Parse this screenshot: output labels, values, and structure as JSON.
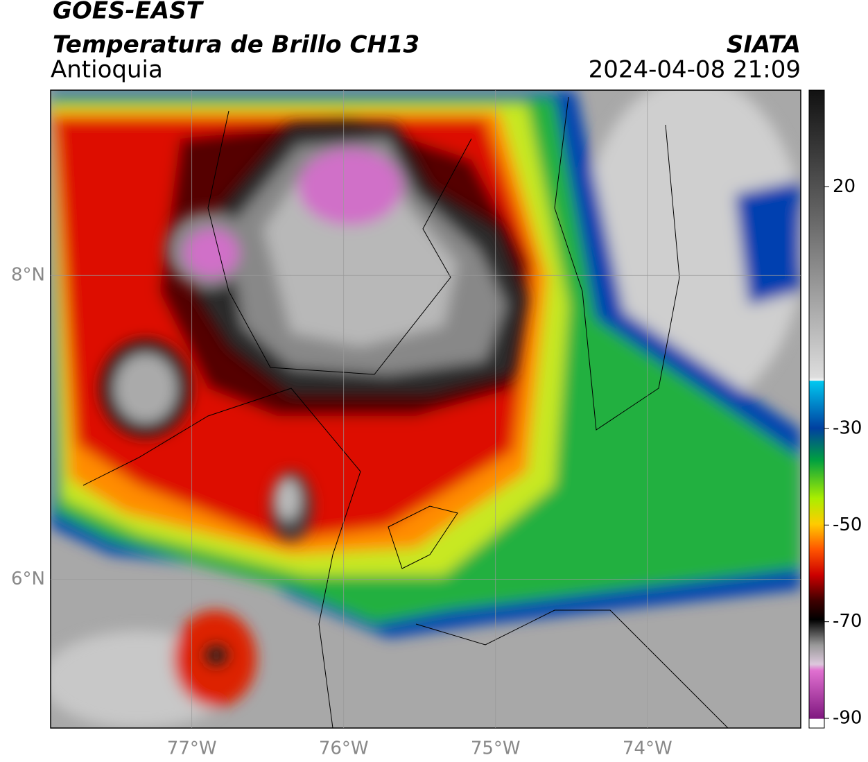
{
  "header": {
    "title": "GOES-EAST",
    "subtitle": "Temperatura de Brillo CH13",
    "region": "Antioquia",
    "agency": "SIATA",
    "datetime": "2024-04-08 21:09"
  },
  "map": {
    "xlim": [
      -77.93,
      -72.99
    ],
    "ylim": [
      5.02,
      9.22
    ],
    "xticks": [
      {
        "value": -77,
        "label": "77°W"
      },
      {
        "value": -76,
        "label": "76°W"
      },
      {
        "value": -75,
        "label": "75°W"
      },
      {
        "value": -74,
        "label": "74°W"
      }
    ],
    "yticks": [
      {
        "value": 8,
        "label": "8°N"
      },
      {
        "value": 6,
        "label": "6°N"
      }
    ]
  },
  "colorbar": {
    "lim": [
      -92,
      40
    ],
    "ticks": [
      20,
      -30,
      -50,
      -70,
      -90
    ]
  }
}
